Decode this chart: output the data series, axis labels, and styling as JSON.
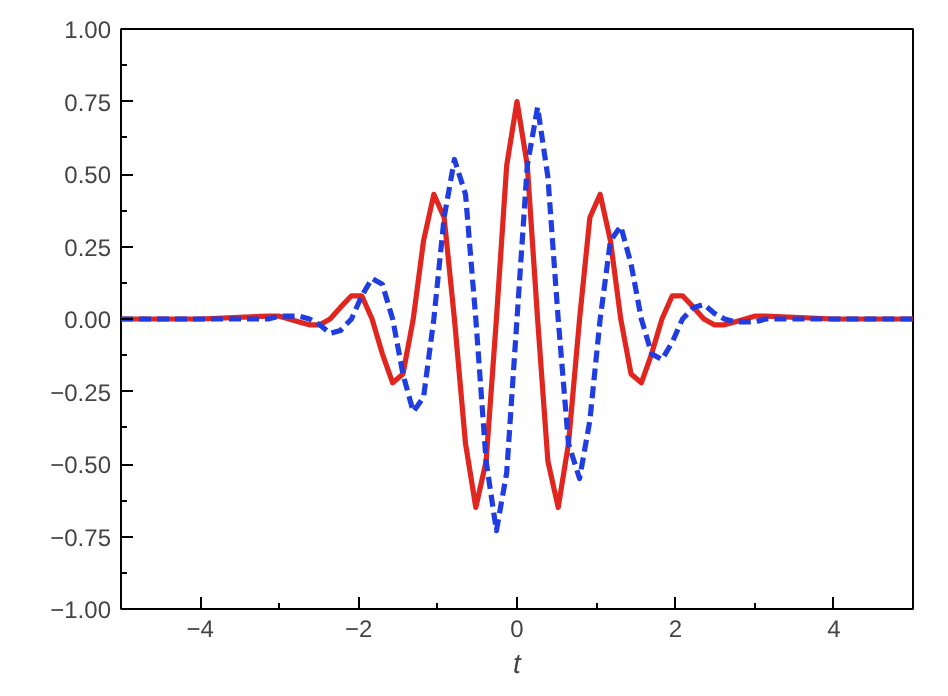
{
  "chart_data": {
    "type": "line",
    "xlabel": "t",
    "x": [
      -5,
      -4,
      -3.14,
      -3.01,
      -2.88,
      -2.75,
      -2.62,
      -2.49,
      -2.36,
      -2.23,
      -2.09,
      -1.96,
      -1.83,
      -1.7,
      -1.57,
      -1.44,
      -1.31,
      -1.18,
      -1.05,
      -0.92,
      -0.79,
      -0.65,
      -0.52,
      -0.39,
      -0.26,
      -0.13,
      0,
      0.13,
      0.26,
      0.39,
      0.52,
      0.65,
      0.79,
      0.92,
      1.05,
      1.18,
      1.31,
      1.44,
      1.57,
      1.7,
      1.83,
      1.96,
      2.09,
      2.23,
      2.36,
      2.49,
      2.62,
      2.75,
      2.88,
      3.01,
      3.14,
      4,
      5
    ],
    "series": [
      {
        "color": "#e0261e",
        "line_style": "solid",
        "values": [
          0,
          0,
          0.01,
          0.01,
          0,
          -0.01,
          -0.02,
          -0.02,
          0,
          0.04,
          0.08,
          0.08,
          0,
          -0.12,
          -0.22,
          -0.19,
          0,
          0.27,
          0.43,
          0.35,
          0,
          -0.43,
          -0.65,
          -0.49,
          0,
          0.53,
          0.75,
          0.53,
          0,
          -0.49,
          -0.65,
          -0.43,
          0,
          0.35,
          0.43,
          0.27,
          0,
          -0.19,
          -0.22,
          -0.12,
          0,
          0.08,
          0.08,
          0.04,
          0,
          -0.02,
          -0.02,
          -0.01,
          0,
          0.01,
          0.01,
          0,
          0
        ]
      },
      {
        "color": "#1f3de0",
        "line_style": "dashed",
        "values": [
          0,
          0,
          0,
          0.01,
          0.01,
          0.01,
          0,
          -0.02,
          -0.05,
          -0.04,
          0,
          0.08,
          0.14,
          0.12,
          0,
          -0.19,
          -0.32,
          -0.27,
          0,
          0.35,
          0.55,
          0.43,
          0,
          -0.49,
          -0.73,
          -0.53,
          0,
          0.53,
          0.73,
          0.49,
          0,
          -0.43,
          -0.55,
          -0.35,
          0,
          0.27,
          0.32,
          0.19,
          0,
          -0.12,
          -0.14,
          -0.08,
          0,
          0.04,
          0.05,
          0.02,
          0,
          -0.01,
          -0.01,
          -0.01,
          0,
          0,
          0
        ]
      }
    ],
    "xlim": [
      -5,
      5
    ],
    "xticks": [
      {
        "value": -4,
        "label": "−4"
      },
      {
        "value": -2,
        "label": "−2"
      },
      0,
      2,
      4
    ],
    "ylim": [
      -1,
      1
    ],
    "yticks": [
      {
        "value": -1,
        "label": "−1.00"
      },
      {
        "value": -0.75,
        "label": "−0.75"
      },
      {
        "value": -0.5,
        "label": "−0.50"
      },
      {
        "value": -0.25,
        "label": "−0.25"
      },
      {
        "value": 0,
        "label": "0.00"
      },
      {
        "value": 0.25,
        "label": "0.25"
      },
      {
        "value": 0.5,
        "label": "0.50"
      },
      {
        "value": 0.75,
        "label": "0.75"
      },
      {
        "value": 1,
        "label": "1.00"
      }
    ],
    "grid": false
  }
}
